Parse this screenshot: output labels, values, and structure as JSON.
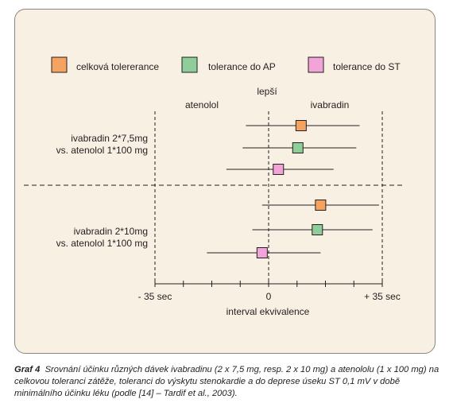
{
  "chart_data": {
    "type": "forest",
    "legend": [
      {
        "label": "celková tolererance",
        "color": "#f4a460"
      },
      {
        "label": "tolerance do AP",
        "color": "#8fce9b"
      },
      {
        "label": "tolerance do ST",
        "color": "#f2a3d8"
      }
    ],
    "top_label": "lepší",
    "side_labels": {
      "left": "atenolol",
      "right": "ivabradin"
    },
    "xlabel": "interval ekvivalence",
    "xlim": [
      -35,
      35
    ],
    "x_tick_labels": [
      {
        "value": -35,
        "label": "- 35 sec"
      },
      {
        "value": 0,
        "label": "0"
      },
      {
        "value": 35,
        "label": "+ 35 sec"
      }
    ],
    "groups": [
      {
        "label_lines": [
          "ivabradin 2*7,5mg",
          "vs. atenolol 1*100 mg"
        ],
        "rows": [
          {
            "measure": "celková tolererance",
            "estimate": 10,
            "low": -7,
            "high": 28
          },
          {
            "measure": "tolerance do AP",
            "estimate": 9,
            "low": -8,
            "high": 27
          },
          {
            "measure": "tolerance do ST",
            "estimate": 3,
            "low": -13,
            "high": 20
          }
        ]
      },
      {
        "label_lines": [
          "ivabradin 2*10mg",
          "vs. atenolol 1*100 mg"
        ],
        "rows": [
          {
            "measure": "celková tolererance",
            "estimate": 16,
            "low": -2,
            "high": 34
          },
          {
            "measure": "tolerance do AP",
            "estimate": 15,
            "low": -5,
            "high": 32
          },
          {
            "measure": "tolerance do ST",
            "estimate": -2,
            "low": -19,
            "high": 16
          }
        ]
      }
    ]
  },
  "caption": {
    "label": "Graf 4",
    "text": "Srovnání účinku různých dávek ivabradinu (2 x 7,5 mg, resp. 2 x 10 mg) a atenololu (1 x 100 mg) na celkovou toleranci zátěže, toleranci do výskytu stenokardie a do deprese úseku ST 0,1 mV v době minimálního účinku léku (podle [14] – Tardif et al., 2003)."
  }
}
